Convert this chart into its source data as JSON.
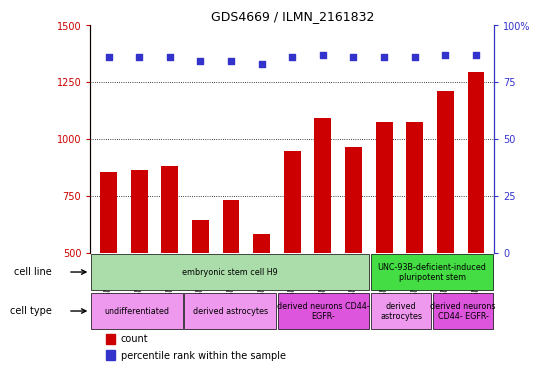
{
  "title": "GDS4669 / ILMN_2161832",
  "samples": [
    "GSM997555",
    "GSM997556",
    "GSM997557",
    "GSM997563",
    "GSM997564",
    "GSM997565",
    "GSM997566",
    "GSM997567",
    "GSM997568",
    "GSM997571",
    "GSM997572",
    "GSM997569",
    "GSM997570"
  ],
  "counts": [
    855,
    865,
    880,
    645,
    730,
    580,
    945,
    1090,
    965,
    1075,
    1075,
    1210,
    1295
  ],
  "percentiles": [
    86,
    86,
    86,
    84,
    84,
    83,
    86,
    87,
    86,
    86,
    86,
    87,
    87
  ],
  "bar_color": "#cc0000",
  "dot_color": "#3333cc",
  "ylim_left": [
    500,
    1500
  ],
  "ylim_right": [
    0,
    100
  ],
  "yticks_left": [
    500,
    750,
    1000,
    1250,
    1500
  ],
  "yticks_right": [
    0,
    25,
    50,
    75,
    100
  ],
  "cell_line_data": [
    {
      "label": "embryonic stem cell H9",
      "start": 0,
      "end": 9,
      "color": "#aaddaa"
    },
    {
      "label": "UNC-93B-deficient-induced\npluripotent stem",
      "start": 9,
      "end": 13,
      "color": "#44dd44"
    }
  ],
  "cell_type_data": [
    {
      "label": "undifferentiated",
      "start": 0,
      "end": 3,
      "color": "#ee99ee"
    },
    {
      "label": "derived astrocytes",
      "start": 3,
      "end": 6,
      "color": "#ee99ee"
    },
    {
      "label": "derived neurons CD44-\nEGFR-",
      "start": 6,
      "end": 9,
      "color": "#dd55dd"
    },
    {
      "label": "derived\nastrocytes",
      "start": 9,
      "end": 11,
      "color": "#ee99ee"
    },
    {
      "label": "derived neurons\nCD44- EGFR-",
      "start": 11,
      "end": 13,
      "color": "#dd55dd"
    }
  ],
  "left_label_color": "#cc0000",
  "right_label_color": "#3333cc",
  "xtick_bg": "#cccccc",
  "background_color": "#ffffff",
  "plot_bg": "#ffffff"
}
